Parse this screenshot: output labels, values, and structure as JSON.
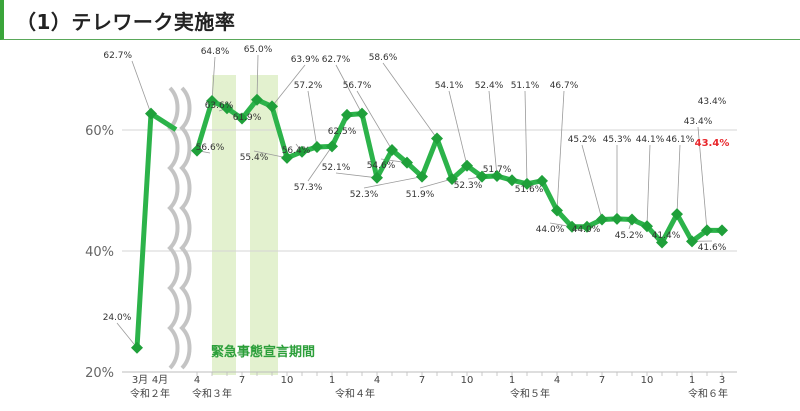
{
  "header": {
    "title": "（1）テレワーク実施率"
  },
  "chart_data": {
    "type": "line",
    "ylim": [
      20,
      70
    ],
    "yticks": [
      "20%",
      "40%",
      "60%"
    ],
    "ytick_values": [
      20,
      40,
      60
    ],
    "series": [
      {
        "values": [
          24.0,
          62.7
        ]
      },
      {
        "values": [
          56.6,
          64.8,
          63.6,
          61.9,
          65.0,
          63.9,
          55.4,
          56.4,
          57.2,
          57.3,
          62.5,
          62.7,
          52.1,
          56.7,
          54.6,
          52.3,
          58.6,
          51.9,
          54.1,
          52.3,
          52.4,
          51.7,
          51.1,
          51.6,
          46.7,
          44.0,
          44.0,
          45.2,
          45.3,
          45.2,
          44.1,
          41.4,
          46.1,
          41.6,
          43.4,
          43.4
        ]
      }
    ],
    "data_labels": {
      "first": [
        "24.0%",
        "62.7%"
      ],
      "second": [
        "56.6%",
        "64.8%",
        "63.6%",
        "61.9%",
        "65.0%",
        "63.9%",
        "55.4%",
        "56.4%",
        "57.2%",
        "57.3%",
        "62.5%",
        "62.7%",
        "52.1%",
        "56.7%",
        "54.6%",
        "52.3%",
        "58.6%",
        "51.9%",
        "54.1%",
        "52.3%",
        "52.4%",
        "51.7%",
        "51.1%",
        "51.6%",
        "46.7%",
        "44.0%",
        "44.0%",
        "45.2%",
        "45.3%",
        "45.2%",
        "44.1%",
        "41.4%",
        "46.1%",
        "41.6%",
        "43.4%",
        "43.4%"
      ]
    },
    "first_segment_x_labels": [
      "3月",
      "4月"
    ],
    "first_segment_era": "令和２年",
    "x_tick_labels": [
      "4",
      "7",
      "10",
      "1",
      "4",
      "7",
      "10",
      "1",
      "4",
      "7",
      "10",
      "1",
      "3"
    ],
    "era_labels": [
      "令和３年",
      "令和４年",
      "令和５年",
      "令和６年"
    ],
    "annotation": "緊急事態宣言期間",
    "highlight_label": "43.4%",
    "colors": {
      "line": "#2cb34a",
      "marker": "#1fa03a",
      "highlight": "#e8262b",
      "period_band": "#e3f1cf",
      "period_text": "#2c9f3a"
    }
  }
}
